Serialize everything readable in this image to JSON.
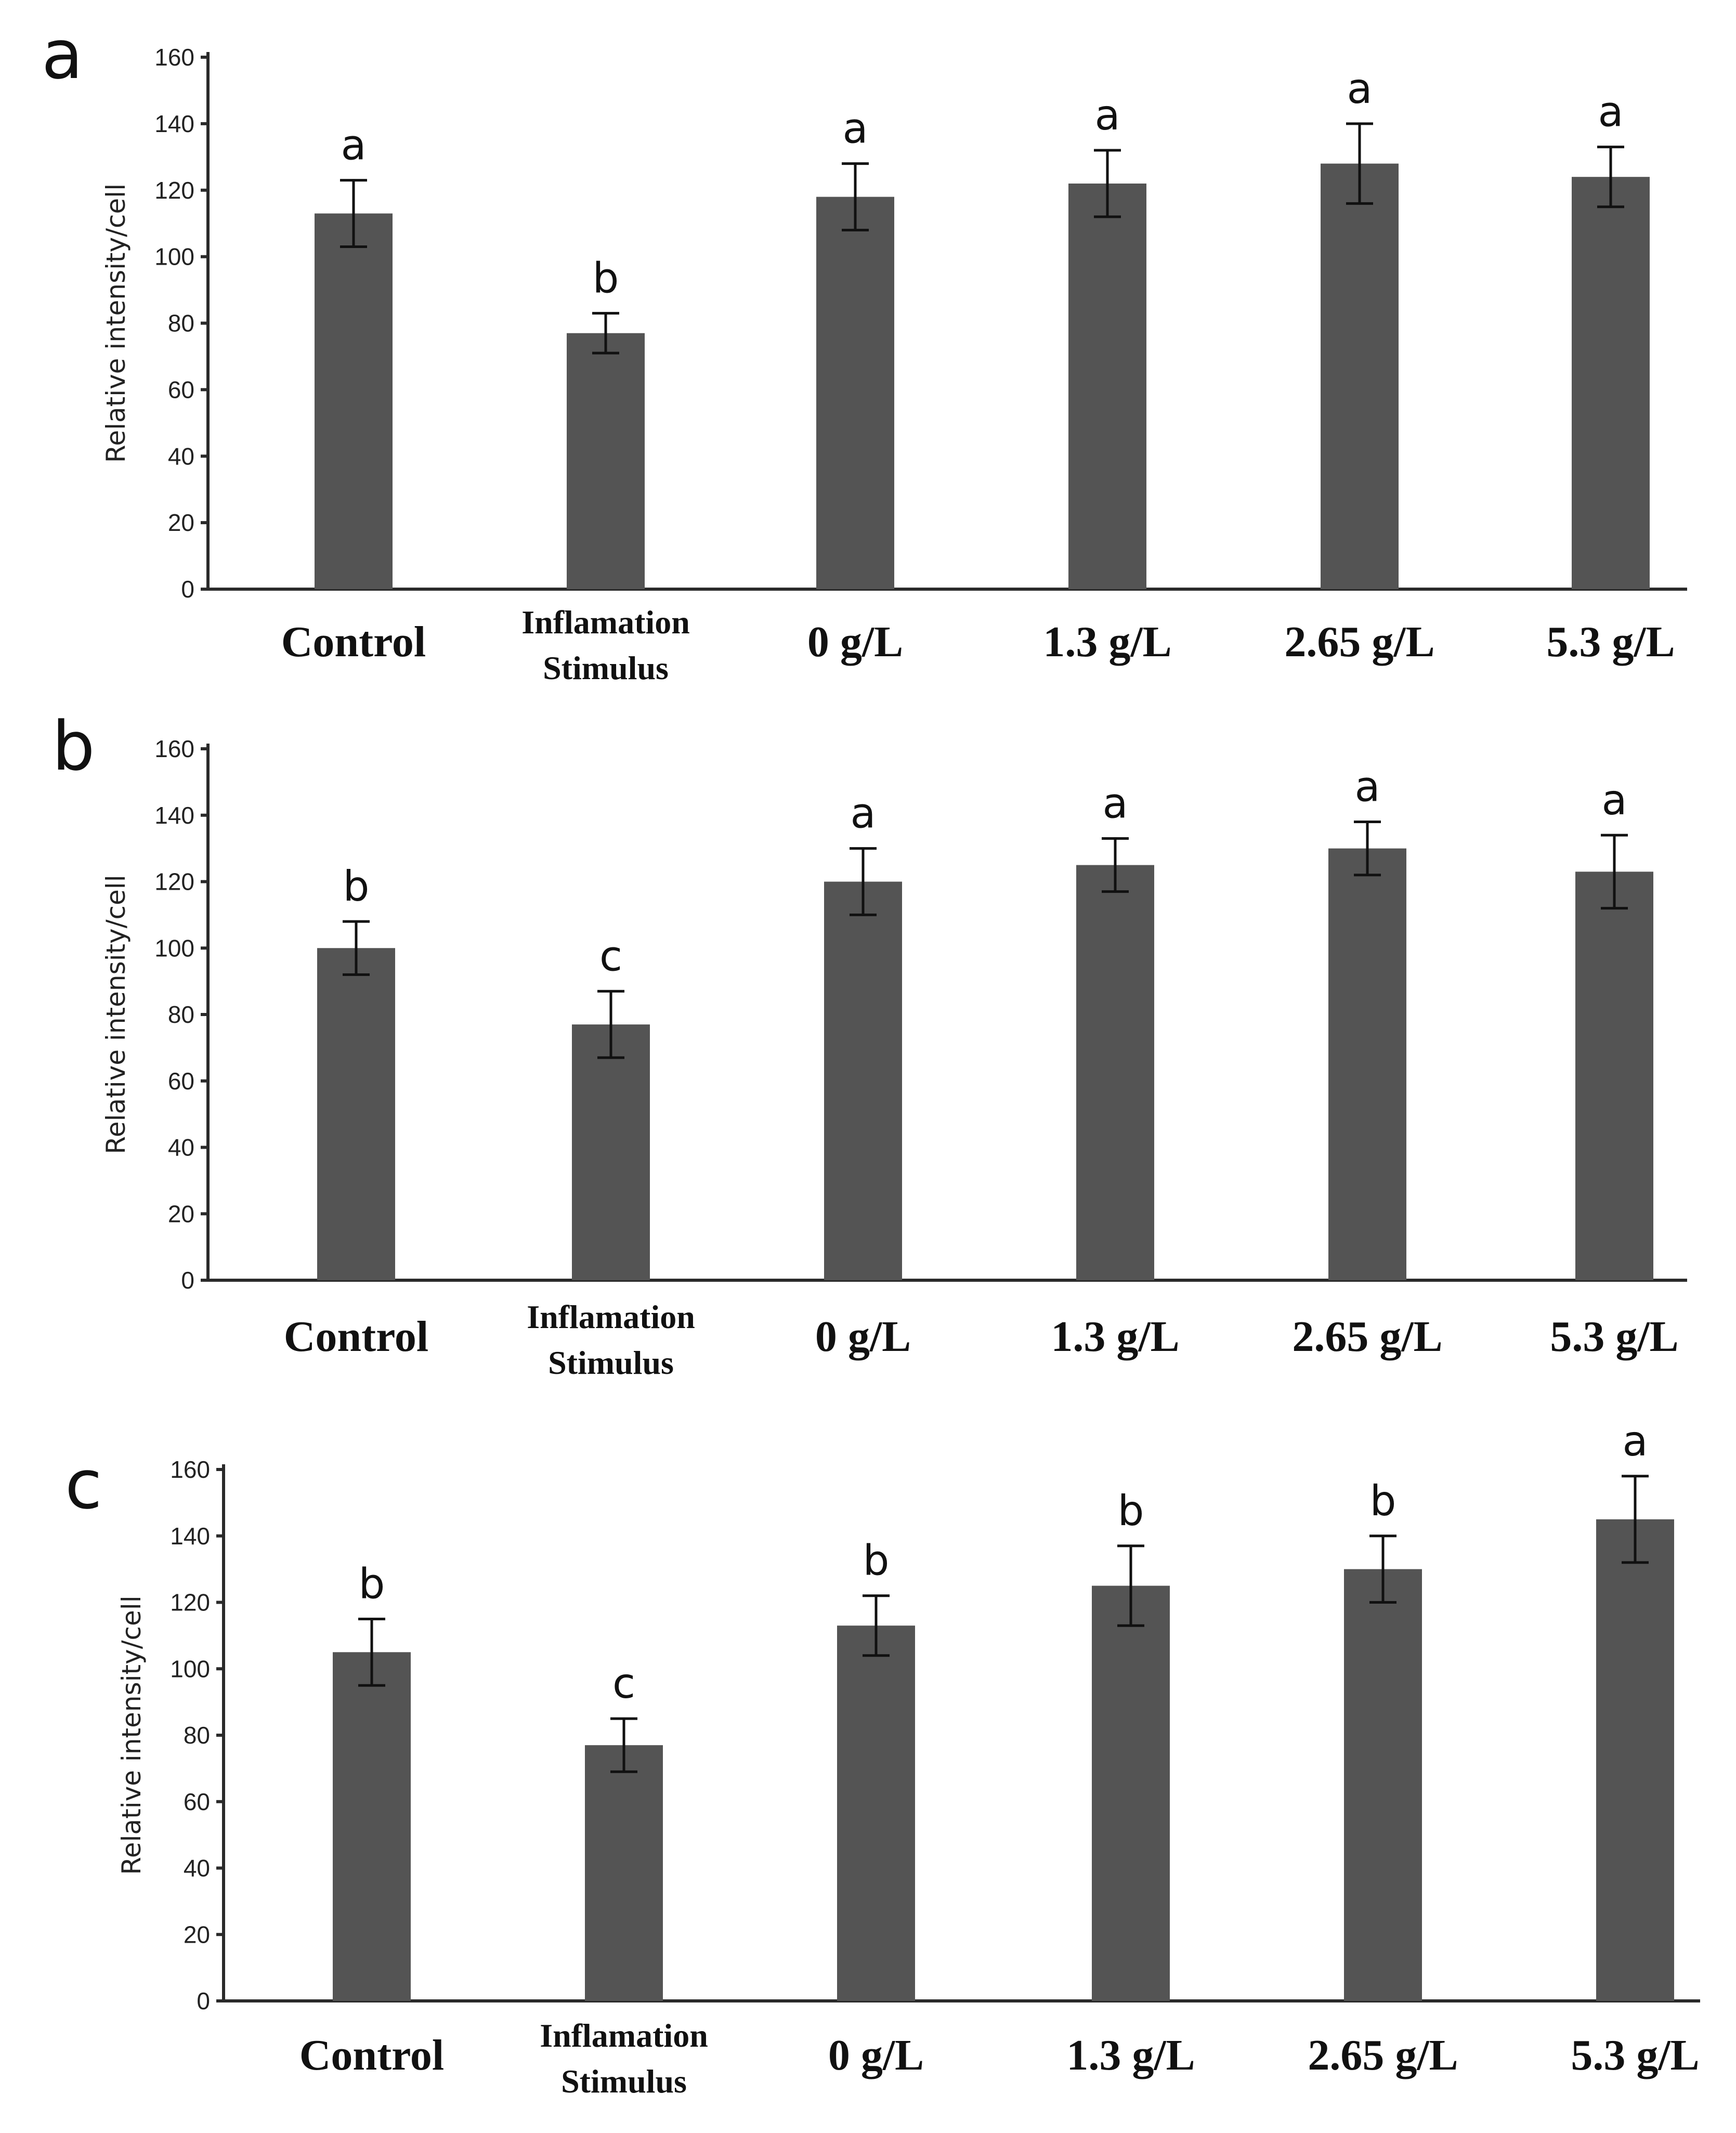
{
  "chart_data": [
    {
      "type": "bar",
      "panel_label": "a",
      "ylabel": "Relative intensity/cell",
      "ylim": [
        0,
        160
      ],
      "yticks": [
        "0",
        "20",
        "40",
        "60",
        "80",
        "100",
        "120",
        "140",
        "160"
      ],
      "categories": [
        [
          "Control"
        ],
        [
          "Inflamation",
          "Stimulus"
        ],
        [
          "0 g/L"
        ],
        [
          "1.3 g/L"
        ],
        [
          "2.65 g/L"
        ],
        [
          "5.3 g/L"
        ]
      ],
      "values": [
        113,
        77,
        118,
        122,
        128,
        124
      ],
      "errors": [
        10,
        6,
        10,
        10,
        12,
        9
      ],
      "letters": [
        "a",
        "b",
        "a",
        "a",
        "a",
        "a"
      ]
    },
    {
      "type": "bar",
      "panel_label": "b",
      "ylabel": "Relative intensity/cell",
      "ylim": [
        0,
        160
      ],
      "yticks": [
        "0",
        "20",
        "40",
        "60",
        "80",
        "100",
        "120",
        "140",
        "160"
      ],
      "categories": [
        [
          "Control"
        ],
        [
          "Inflamation",
          "Stimulus"
        ],
        [
          "0 g/L"
        ],
        [
          "1.3 g/L"
        ],
        [
          "2.65 g/L"
        ],
        [
          "5.3 g/L"
        ]
      ],
      "values": [
        100,
        77,
        120,
        125,
        130,
        123
      ],
      "errors": [
        8,
        10,
        10,
        8,
        8,
        11
      ],
      "letters": [
        "b",
        "c",
        "a",
        "a",
        "a",
        "a"
      ]
    },
    {
      "type": "bar",
      "panel_label": "c",
      "ylabel": "Relative intensity/cell",
      "ylim": [
        0,
        160
      ],
      "yticks": [
        "0",
        "20",
        "40",
        "60",
        "80",
        "100",
        "120",
        "140",
        "160"
      ],
      "categories": [
        [
          "Control"
        ],
        [
          "Inflamation",
          "Stimulus"
        ],
        [
          "0 g/L"
        ],
        [
          "1.3 g/L"
        ],
        [
          "2.65 g/L"
        ],
        [
          "5.3 g/L"
        ]
      ],
      "values": [
        105,
        77,
        113,
        125,
        130,
        145
      ],
      "errors": [
        10,
        8,
        9,
        12,
        10,
        13
      ],
      "letters": [
        "b",
        "c",
        "b",
        "b",
        "b",
        "a"
      ]
    }
  ]
}
